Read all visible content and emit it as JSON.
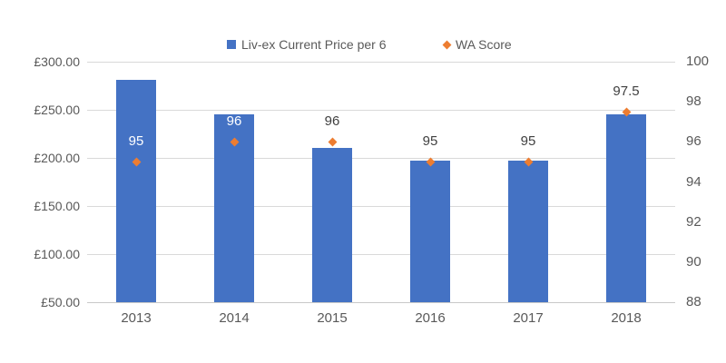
{
  "chart_data": {
    "type": "combo",
    "title": "",
    "categories": [
      "2013",
      "2014",
      "2015",
      "2016",
      "2017",
      "2018"
    ],
    "series": [
      {
        "name": "Liv-ex Current Price per 6",
        "type": "bar",
        "axis": "left",
        "color": "#4472C4",
        "values": [
          281,
          245,
          210,
          197,
          197,
          245
        ]
      },
      {
        "name": "WA Score",
        "type": "scatter",
        "marker": "diamond",
        "axis": "right",
        "color": "#ED7D31",
        "values": [
          95,
          96,
          96,
          95,
          95,
          97.5
        ],
        "data_labels": [
          "95",
          "96",
          "96",
          "95",
          "95",
          "97.5"
        ]
      }
    ],
    "left_axis": {
      "min": 50,
      "max": 300,
      "step": 50,
      "tick_labels": [
        "£50.00",
        "£100.00",
        "£150.00",
        "£200.00",
        "£250.00",
        "£300.00"
      ]
    },
    "right_axis": {
      "min": 88,
      "max": 100,
      "step": 2,
      "tick_labels": [
        "88",
        "90",
        "92",
        "94",
        "96",
        "98",
        "100"
      ]
    },
    "grid": true,
    "legend_position": "top",
    "colors": {
      "bar": "#4472C4",
      "marker": "#ED7D31",
      "gridline": "#D9D9D9",
      "axis_line": "#C8C8C8",
      "tick_text": "#595959",
      "data_label_on_bar": "#FFFFFF",
      "data_label_default": "#404040",
      "background": "#FFFFFF"
    }
  }
}
